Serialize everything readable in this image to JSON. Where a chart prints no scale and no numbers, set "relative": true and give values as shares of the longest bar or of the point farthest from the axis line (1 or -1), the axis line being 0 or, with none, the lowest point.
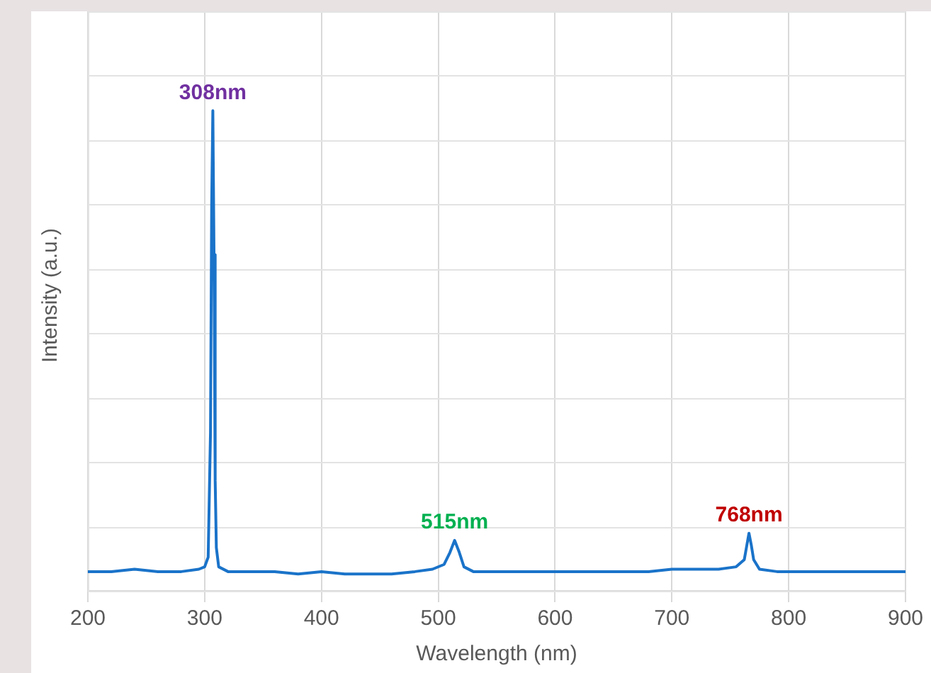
{
  "chart_data": {
    "type": "line",
    "xlabel": "Wavelength (nm)",
    "ylabel": "Intensity (a.u.)",
    "relative": true,
    "grid": true,
    "legend": false,
    "marker": "none",
    "line_style": "solid",
    "xlim": [
      200,
      900
    ],
    "xticks": [
      200,
      300,
      400,
      500,
      600,
      700,
      800,
      900
    ],
    "annotations": [
      {
        "text": "308nm",
        "x": 307,
        "y": 1
      },
      {
        "text": "515nm",
        "x": 514,
        "y": 0.105
      },
      {
        "text": "768nm",
        "x": 766,
        "y": 0.12
      }
    ],
    "series": [
      {
        "color": "#1a73c9",
        "x": [
          200,
          220,
          240,
          260,
          280,
          295,
          300,
          303,
          305,
          306,
          307,
          308,
          309,
          310,
          312,
          320,
          340,
          360,
          380,
          400,
          420,
          440,
          460,
          480,
          495,
          505,
          510,
          514,
          518,
          522,
          530,
          550,
          580,
          600,
          620,
          650,
          680,
          700,
          720,
          740,
          755,
          762,
          766,
          768,
          770,
          775,
          790,
          820,
          850,
          880,
          900
        ],
        "values": [
          0.04,
          0.04,
          0.045,
          0.04,
          0.04,
          0.045,
          0.05,
          0.07,
          0.33,
          0.8,
          1,
          0.7,
          0.23,
          0.09,
          0.05,
          0.04,
          0.04,
          0.04,
          0.035,
          0.04,
          0.035,
          0.035,
          0.035,
          0.04,
          0.045,
          0.055,
          0.08,
          0.105,
          0.08,
          0.05,
          0.04,
          0.04,
          0.04,
          0.04,
          0.04,
          0.04,
          0.04,
          0.045,
          0.045,
          0.045,
          0.05,
          0.065,
          0.12,
          0.095,
          0.065,
          0.045,
          0.04,
          0.04,
          0.04,
          0.04,
          0.04
        ]
      }
    ]
  }
}
